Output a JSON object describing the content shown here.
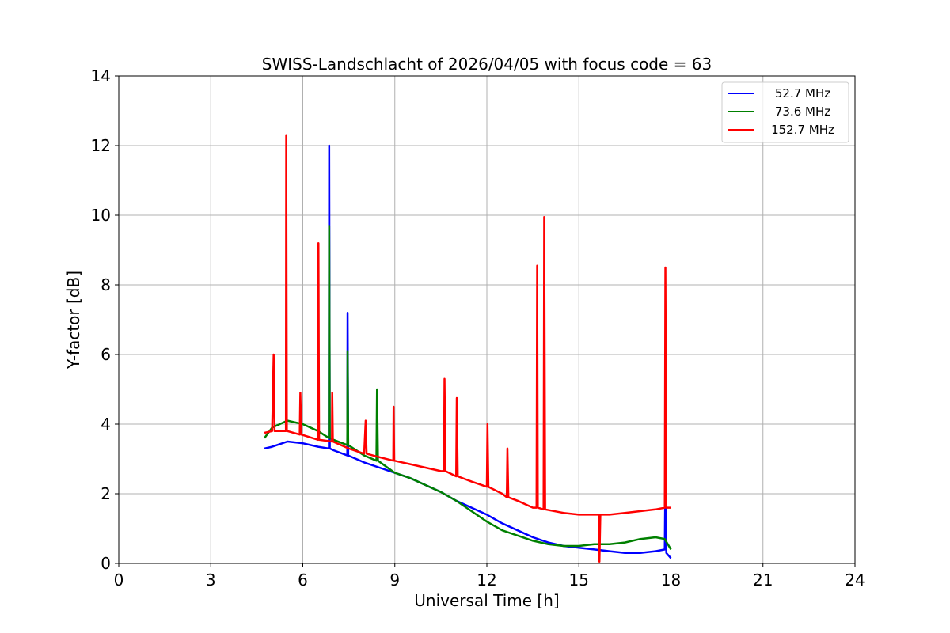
{
  "chart_data": {
    "type": "line",
    "title": "SWISS-Landschlacht of 2026/04/05 with focus code = 63",
    "xlabel": "Universal Time [h]",
    "ylabel": "Y-factor [dB]",
    "xlim": [
      0,
      24
    ],
    "ylim": [
      0,
      14
    ],
    "xticks": [
      0,
      3,
      6,
      9,
      12,
      15,
      18,
      21,
      24
    ],
    "yticks": [
      0,
      2,
      4,
      6,
      8,
      10,
      12,
      14
    ],
    "grid": true,
    "legend_position": "top-right",
    "series": [
      {
        "name": "52.7 MHz",
        "label": "  52.7 MHz",
        "color": "#0000ff",
        "points": [
          [
            4.75,
            3.3
          ],
          [
            5.0,
            3.35
          ],
          [
            5.5,
            3.5
          ],
          [
            6.0,
            3.45
          ],
          [
            6.5,
            3.35
          ],
          [
            6.85,
            3.3
          ],
          [
            6.86,
            12.0
          ],
          [
            6.88,
            3.3
          ],
          [
            7.0,
            3.25
          ],
          [
            7.45,
            3.1
          ],
          [
            7.46,
            7.2
          ],
          [
            7.48,
            3.1
          ],
          [
            8.0,
            2.9
          ],
          [
            8.5,
            2.75
          ],
          [
            9.0,
            2.6
          ],
          [
            9.5,
            2.45
          ],
          [
            10.0,
            2.25
          ],
          [
            10.5,
            2.05
          ],
          [
            11.0,
            1.8
          ],
          [
            11.5,
            1.6
          ],
          [
            12.0,
            1.4
          ],
          [
            12.5,
            1.15
          ],
          [
            13.0,
            0.95
          ],
          [
            13.5,
            0.75
          ],
          [
            14.0,
            0.6
          ],
          [
            14.5,
            0.5
          ],
          [
            15.0,
            0.45
          ],
          [
            15.5,
            0.4
          ],
          [
            16.0,
            0.35
          ],
          [
            16.5,
            0.3
          ],
          [
            17.0,
            0.3
          ],
          [
            17.5,
            0.35
          ],
          [
            17.8,
            0.4
          ],
          [
            17.82,
            2.6
          ],
          [
            17.85,
            0.3
          ],
          [
            18.0,
            0.15
          ]
        ]
      },
      {
        "name": "73.6 MHz",
        "label": "  73.6 MHz",
        "color": "#008000",
        "points": [
          [
            4.75,
            3.6
          ],
          [
            5.0,
            3.9
          ],
          [
            5.5,
            4.1
          ],
          [
            6.0,
            4.0
          ],
          [
            6.5,
            3.8
          ],
          [
            6.85,
            3.6
          ],
          [
            6.86,
            9.7
          ],
          [
            6.88,
            3.6
          ],
          [
            7.0,
            3.55
          ],
          [
            7.45,
            3.4
          ],
          [
            7.46,
            6.1
          ],
          [
            7.48,
            3.4
          ],
          [
            8.0,
            3.1
          ],
          [
            8.4,
            2.95
          ],
          [
            8.42,
            5.0
          ],
          [
            8.45,
            2.95
          ],
          [
            9.0,
            2.6
          ],
          [
            9.5,
            2.45
          ],
          [
            10.0,
            2.25
          ],
          [
            10.5,
            2.05
          ],
          [
            11.0,
            1.8
          ],
          [
            11.5,
            1.5
          ],
          [
            12.0,
            1.2
          ],
          [
            12.5,
            0.95
          ],
          [
            13.0,
            0.8
          ],
          [
            13.5,
            0.65
          ],
          [
            14.0,
            0.55
          ],
          [
            14.5,
            0.5
          ],
          [
            15.0,
            0.5
          ],
          [
            15.5,
            0.55
          ],
          [
            16.0,
            0.55
          ],
          [
            16.5,
            0.6
          ],
          [
            17.0,
            0.7
          ],
          [
            17.5,
            0.75
          ],
          [
            17.8,
            0.7
          ],
          [
            18.0,
            0.4
          ]
        ]
      },
      {
        "name": "152.7 MHz",
        "label": "152.7 MHz",
        "color": "#ff0000",
        "points": [
          [
            4.75,
            3.75
          ],
          [
            5.0,
            3.8
          ],
          [
            5.05,
            6.0
          ],
          [
            5.08,
            3.8
          ],
          [
            5.3,
            3.8
          ],
          [
            5.45,
            3.8
          ],
          [
            5.46,
            12.3
          ],
          [
            5.48,
            3.8
          ],
          [
            5.5,
            3.8
          ],
          [
            5.9,
            3.7
          ],
          [
            5.92,
            4.9
          ],
          [
            5.95,
            3.7
          ],
          [
            6.5,
            3.55
          ],
          [
            6.51,
            9.2
          ],
          [
            6.53,
            3.55
          ],
          [
            6.95,
            3.5
          ],
          [
            6.96,
            4.9
          ],
          [
            6.98,
            3.5
          ],
          [
            7.5,
            3.3
          ],
          [
            8.0,
            3.15
          ],
          [
            8.05,
            4.1
          ],
          [
            8.08,
            3.15
          ],
          [
            8.5,
            3.05
          ],
          [
            8.95,
            2.95
          ],
          [
            8.96,
            4.5
          ],
          [
            8.98,
            2.95
          ],
          [
            9.5,
            2.85
          ],
          [
            10.0,
            2.75
          ],
          [
            10.5,
            2.65
          ],
          [
            10.6,
            2.65
          ],
          [
            10.62,
            5.3
          ],
          [
            10.65,
            2.65
          ],
          [
            11.0,
            2.5
          ],
          [
            11.02,
            4.75
          ],
          [
            11.05,
            2.5
          ],
          [
            11.5,
            2.35
          ],
          [
            12.0,
            2.2
          ],
          [
            12.02,
            4.0
          ],
          [
            12.05,
            2.2
          ],
          [
            12.5,
            2.0
          ],
          [
            12.65,
            1.9
          ],
          [
            12.67,
            3.3
          ],
          [
            12.7,
            1.9
          ],
          [
            13.0,
            1.8
          ],
          [
            13.5,
            1.6
          ],
          [
            13.62,
            1.6
          ],
          [
            13.64,
            8.55
          ],
          [
            13.66,
            1.6
          ],
          [
            13.85,
            1.55
          ],
          [
            13.87,
            9.95
          ],
          [
            13.9,
            1.55
          ],
          [
            14.5,
            1.45
          ],
          [
            15.0,
            1.4
          ],
          [
            15.5,
            1.4
          ],
          [
            15.65,
            1.4
          ],
          [
            15.67,
            0.05
          ],
          [
            15.7,
            1.4
          ],
          [
            16.0,
            1.4
          ],
          [
            16.5,
            1.45
          ],
          [
            17.0,
            1.5
          ],
          [
            17.5,
            1.55
          ],
          [
            17.8,
            1.6
          ],
          [
            17.82,
            8.5
          ],
          [
            17.85,
            1.6
          ],
          [
            18.0,
            1.6
          ]
        ]
      }
    ]
  }
}
